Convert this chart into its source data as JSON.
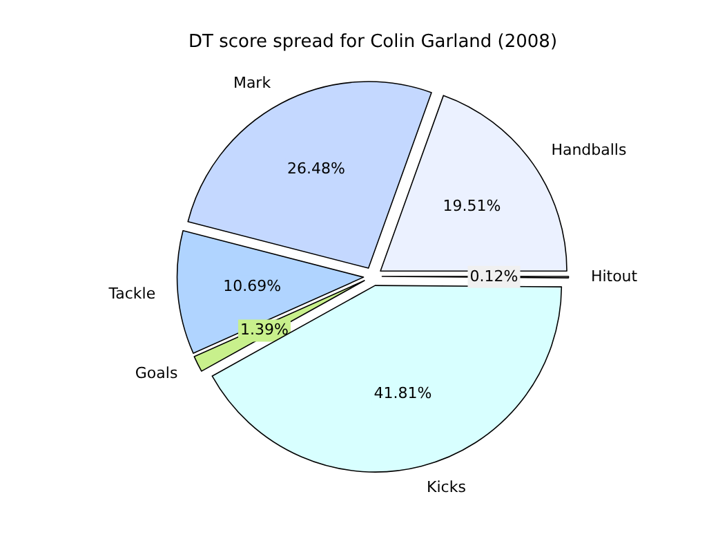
{
  "chart_data": {
    "type": "pie",
    "title": "DT score spread for Colin Garland (2008)",
    "categories": [
      "Handballs",
      "Mark",
      "Tackle",
      "Goals",
      "Kicks",
      "Hitout"
    ],
    "values": [
      19.51,
      26.48,
      10.69,
      1.39,
      41.81,
      0.12
    ],
    "value_labels": [
      "19.51%",
      "26.48%",
      "10.69%",
      "1.39%",
      "41.81%",
      "0.12%"
    ],
    "colors": [
      "#ebf1ff",
      "#c4d8ff",
      "#b0d4ff",
      "#c8f08c",
      "#d8ffff",
      "#f0f0f0"
    ]
  }
}
